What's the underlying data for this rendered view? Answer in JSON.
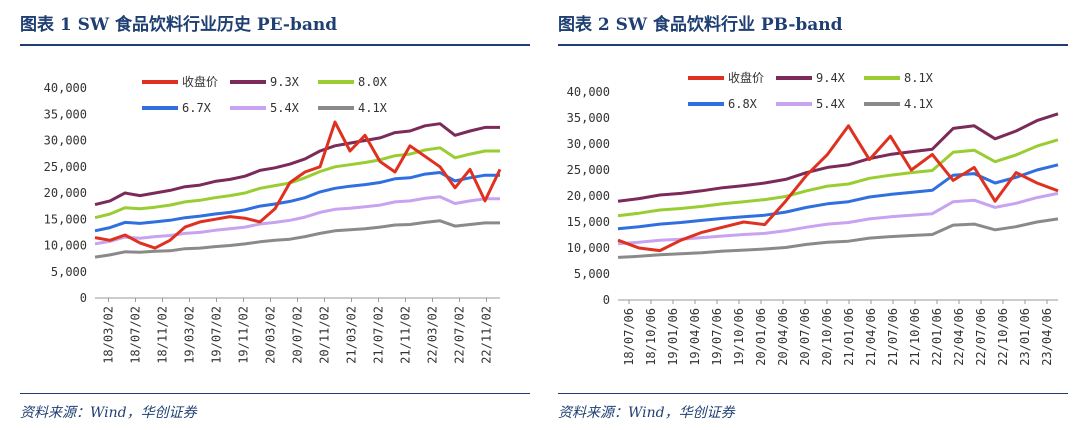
{
  "panels": [
    {
      "title": "图表 1   SW 食品饮料行业历史 PE-band",
      "source": "资料来源：Wind，华创证券",
      "chart_data": {
        "type": "line",
        "ylim": [
          0,
          40000
        ],
        "yticks": [
          "0",
          "5,000",
          "10,000",
          "15,000",
          "20,000",
          "25,000",
          "30,000",
          "35,000",
          "40,000"
        ],
        "yvals": [
          0,
          5000,
          10000,
          15000,
          20000,
          25000,
          30000,
          35000,
          40000
        ],
        "xticks": [
          "18/03/02",
          "18/07/02",
          "18/11/02",
          "19/03/02",
          "19/07/02",
          "19/11/02",
          "20/03/02",
          "20/07/02",
          "20/11/02",
          "21/03/02",
          "21/07/02",
          "21/11/02",
          "22/03/02",
          "22/07/02",
          "22/11/02"
        ],
        "legend": [
          "收盘价",
          "9.3X",
          "8.0X",
          "6.7X",
          "5.4X",
          "4.1X"
        ],
        "series": [
          {
            "name": "9.3X",
            "color": "#7b2a5a",
            "values": [
              17800,
              18500,
              20000,
              19500,
              20000,
              20500,
              21200,
              21500,
              22200,
              22600,
              23200,
              24300,
              24800,
              25500,
              26500,
              28000,
              29000,
              29500,
              30000,
              30500,
              31500,
              31800,
              32800,
              33200,
              31000,
              31800,
              32500,
              32500
            ]
          },
          {
            "name": "8.0X",
            "color": "#9acd32",
            "values": [
              15300,
              16000,
              17200,
              17000,
              17300,
              17700,
              18300,
              18600,
              19100,
              19500,
              20000,
              20900,
              21400,
              21900,
              22900,
              24100,
              25000,
              25400,
              25800,
              26300,
              27100,
              27400,
              28200,
              28600,
              26700,
              27400,
              28000,
              28000
            ]
          },
          {
            "name": "6.7X",
            "color": "#2f6fe0",
            "values": [
              12800,
              13400,
              14400,
              14200,
              14500,
              14800,
              15300,
              15600,
              16000,
              16300,
              16800,
              17500,
              17900,
              18400,
              19100,
              20200,
              20900,
              21300,
              21600,
              22000,
              22700,
              22900,
              23600,
              23900,
              22300,
              22900,
              23400,
              23400
            ]
          },
          {
            "name": "5.4X",
            "color": "#c7a3f0",
            "values": [
              10300,
              10800,
              11600,
              11400,
              11700,
              11900,
              12300,
              12500,
              12900,
              13200,
              13500,
              14100,
              14400,
              14800,
              15400,
              16300,
              16900,
              17100,
              17400,
              17700,
              18300,
              18500,
              19000,
              19300,
              18000,
              18500,
              18900,
              18900
            ]
          },
          {
            "name": "4.1X",
            "color": "#8a8a8a",
            "values": [
              7800,
              8200,
              8800,
              8700,
              8900,
              9000,
              9400,
              9500,
              9800,
              10000,
              10300,
              10700,
              11000,
              11200,
              11700,
              12300,
              12800,
              13000,
              13200,
              13500,
              13900,
              14000,
              14400,
              14700,
              13700,
              14000,
              14300,
              14300
            ]
          },
          {
            "name": "收盘价",
            "color": "#e03020",
            "values": [
              11500,
              11000,
              12000,
              10500,
              9500,
              11000,
              13500,
              14500,
              15000,
              15500,
              15200,
              14500,
              17000,
              22000,
              24000,
              25000,
              33500,
              28000,
              31000,
              26000,
              24000,
              29000,
              27000,
              25000,
              21000,
              24500,
              18500,
              24500
            ]
          }
        ]
      }
    },
    {
      "title": "图表 2   SW 食品饮料行业 PB-band",
      "source": "资料来源：Wind，华创证券",
      "chart_data": {
        "type": "line",
        "ylim": [
          0,
          40000
        ],
        "yticks": [
          "0",
          "5,000",
          "10,000",
          "15,000",
          "20,000",
          "25,000",
          "30,000",
          "35,000",
          "40,000"
        ],
        "yvals": [
          0,
          5000,
          10000,
          15000,
          20000,
          25000,
          30000,
          35000,
          40000
        ],
        "xticks": [
          "18/07/06",
          "18/10/06",
          "19/01/06",
          "19/04/06",
          "19/07/06",
          "19/10/06",
          "20/01/06",
          "20/04/06",
          "20/07/06",
          "20/10/06",
          "21/01/06",
          "21/04/06",
          "21/07/06",
          "21/10/06",
          "22/01/06",
          "22/04/06",
          "22/07/06",
          "22/10/06",
          "23/01/06",
          "23/04/06"
        ],
        "legend": [
          "收盘价",
          "9.4X",
          "8.1X",
          "6.8X",
          "5.4X",
          "4.1X"
        ],
        "series": [
          {
            "name": "9.4X",
            "color": "#7b2a5a",
            "values": [
              19000,
              19500,
              20200,
              20500,
              21000,
              21600,
              22000,
              22500,
              23200,
              24500,
              25500,
              26000,
              27200,
              28000,
              28500,
              29000,
              33000,
              33500,
              31000,
              32500,
              34500,
              35800
            ]
          },
          {
            "name": "8.1X",
            "color": "#9acd32",
            "values": [
              16200,
              16700,
              17300,
              17600,
              18000,
              18500,
              18900,
              19300,
              19900,
              21000,
              21900,
              22300,
              23400,
              24000,
              24500,
              24900,
              28400,
              28800,
              26600,
              27900,
              29600,
              30800
            ]
          },
          {
            "name": "6.8X",
            "color": "#2f6fe0",
            "values": [
              13700,
              14100,
              14600,
              14900,
              15300,
              15700,
              16000,
              16300,
              16900,
              17800,
              18500,
              18900,
              19800,
              20300,
              20700,
              21100,
              24000,
              24300,
              22500,
              23600,
              25000,
              26000
            ]
          },
          {
            "name": "5.4X",
            "color": "#c7a3f0",
            "values": [
              10800,
              11100,
              11500,
              11700,
              12000,
              12300,
              12600,
              12800,
              13300,
              14000,
              14600,
              14900,
              15600,
              16000,
              16300,
              16600,
              18900,
              19200,
              17800,
              18600,
              19700,
              20500
            ]
          },
          {
            "name": "4.1X",
            "color": "#8a8a8a",
            "values": [
              8200,
              8400,
              8700,
              8900,
              9100,
              9400,
              9600,
              9800,
              10100,
              10700,
              11100,
              11300,
              11900,
              12200,
              12400,
              12600,
              14400,
              14600,
              13500,
              14100,
              15000,
              15600
            ]
          },
          {
            "name": "收盘价",
            "color": "#e03020",
            "values": [
              11500,
              10000,
              9500,
              11500,
              13000,
              14000,
              15000,
              14500,
              19000,
              24000,
              28000,
              33500,
              27000,
              31500,
              25000,
              28000,
              23000,
              25500,
              19000,
              24500,
              22500,
              21000
            ]
          }
        ]
      }
    }
  ]
}
